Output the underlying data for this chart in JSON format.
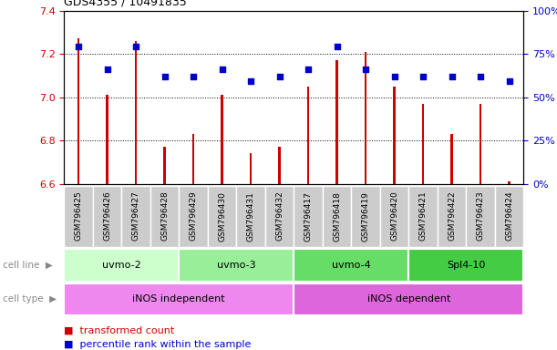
{
  "title": "GDS4355 / 10491835",
  "samples": [
    "GSM796425",
    "GSM796426",
    "GSM796427",
    "GSM796428",
    "GSM796429",
    "GSM796430",
    "GSM796431",
    "GSM796432",
    "GSM796417",
    "GSM796418",
    "GSM796419",
    "GSM796420",
    "GSM796421",
    "GSM796422",
    "GSM796423",
    "GSM796424"
  ],
  "bar_values": [
    7.27,
    7.01,
    7.26,
    6.77,
    6.83,
    7.01,
    6.74,
    6.77,
    7.05,
    7.17,
    7.21,
    7.05,
    6.97,
    6.83,
    6.97,
    6.61
  ],
  "dot_values": [
    79,
    66,
    79,
    62,
    62,
    66,
    59,
    62,
    66,
    79,
    66,
    62,
    62,
    62,
    62,
    59
  ],
  "ylim_left": [
    6.6,
    7.4
  ],
  "ylim_right": [
    0,
    100
  ],
  "yticks_left": [
    6.6,
    6.8,
    7.0,
    7.2,
    7.4
  ],
  "yticks_right": [
    0,
    25,
    50,
    75,
    100
  ],
  "ytick_labels_right": [
    "0%",
    "25%",
    "50%",
    "75%",
    "100%"
  ],
  "bar_color": "#cc0000",
  "dot_color": "#0000cc",
  "bar_bottom": 6.6,
  "bar_width": 0.08,
  "cell_line_groups": [
    {
      "label": "uvmo-2",
      "start": 0,
      "end": 3,
      "color": "#ccffcc"
    },
    {
      "label": "uvmo-3",
      "start": 4,
      "end": 7,
      "color": "#99ee99"
    },
    {
      "label": "uvmo-4",
      "start": 8,
      "end": 11,
      "color": "#66dd66"
    },
    {
      "label": "Spl4-10",
      "start": 12,
      "end": 15,
      "color": "#44cc44"
    }
  ],
  "cell_type_groups": [
    {
      "label": "iNOS independent",
      "start": 0,
      "end": 7,
      "color": "#ee88ee"
    },
    {
      "label": "iNOS dependent",
      "start": 8,
      "end": 15,
      "color": "#dd66dd"
    }
  ],
  "row_label_color": "#888888",
  "xtick_bg_color": "#cccccc",
  "background_color": "#ffffff",
  "tick_color_left": "#cc0000",
  "tick_color_right": "#0000cc"
}
